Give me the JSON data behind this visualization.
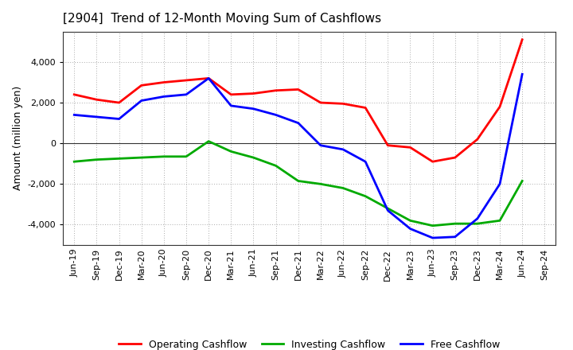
{
  "title": "[2904]  Trend of 12-Month Moving Sum of Cashflows",
  "ylabel": "Amount (million yen)",
  "x_labels": [
    "Jun-19",
    "Sep-19",
    "Dec-19",
    "Mar-20",
    "Jun-20",
    "Sep-20",
    "Dec-20",
    "Mar-21",
    "Jun-21",
    "Sep-21",
    "Dec-21",
    "Mar-22",
    "Jun-22",
    "Sep-22",
    "Dec-22",
    "Mar-23",
    "Jun-23",
    "Sep-23",
    "Dec-23",
    "Mar-24",
    "Jun-24",
    "Sep-24"
  ],
  "operating": [
    2400,
    2150,
    2000,
    2850,
    3000,
    3100,
    3200,
    2400,
    2450,
    2600,
    2650,
    2000,
    1950,
    1750,
    -100,
    -200,
    -900,
    -700,
    200,
    1800,
    5100,
    null
  ],
  "investing": [
    -900,
    -800,
    -750,
    -700,
    -650,
    -650,
    100,
    -400,
    -700,
    -1100,
    -1850,
    -2000,
    -2200,
    -2600,
    -3200,
    -3800,
    -4050,
    -3950,
    -3950,
    -3800,
    -1850,
    null
  ],
  "free": [
    1400,
    1300,
    1200,
    2100,
    2300,
    2400,
    3200,
    1850,
    1700,
    1400,
    1000,
    -100,
    -300,
    -900,
    -3300,
    -4200,
    -4650,
    -4600,
    -3700,
    -2000,
    3400,
    null
  ],
  "ylim": [
    -5000,
    5500
  ],
  "yticks": [
    -4000,
    -2000,
    0,
    2000,
    4000
  ],
  "operating_color": "#FF0000",
  "investing_color": "#00AA00",
  "free_color": "#0000FF",
  "bg_color": "#FFFFFF",
  "plot_bg_color": "#FFFFFF",
  "grid_color": "#AAAAAA",
  "linewidth": 2.0,
  "title_fontsize": 11,
  "ylabel_fontsize": 9,
  "tick_fontsize": 8,
  "legend_fontsize": 9
}
